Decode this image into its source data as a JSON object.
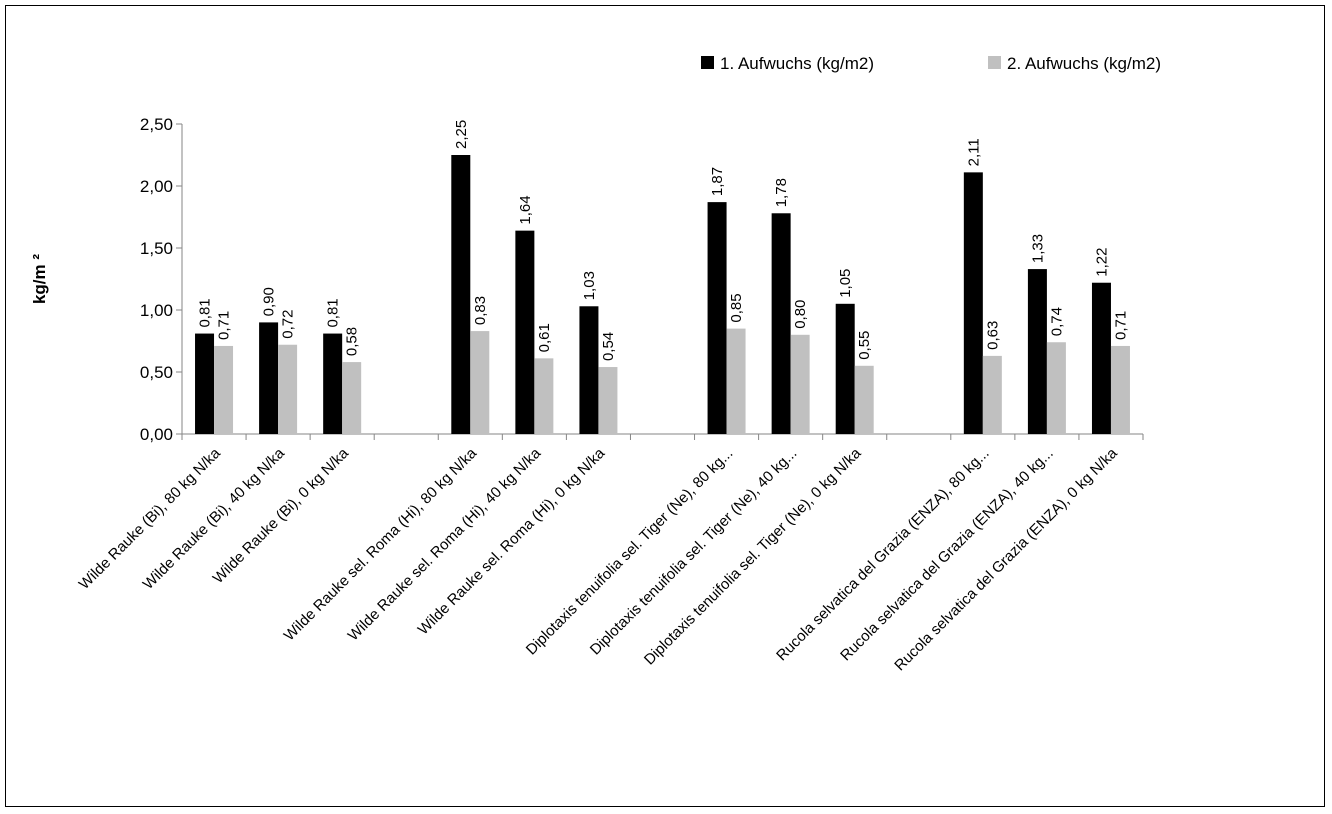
{
  "chart_data": {
    "type": "bar",
    "title": "",
    "xlabel": "",
    "ylabel": "kg/m ²",
    "ylim": [
      0,
      2.5
    ],
    "yticks": [
      "0,00",
      "0,50",
      "1,00",
      "1,50",
      "2,00",
      "2,50"
    ],
    "legend_position": "top-right",
    "grid": false,
    "categories": [
      "Wilde Rauke (Bi), 80 kg N/ka",
      "Wilde Rauke (Bi), 40 kg N/ka",
      "Wilde Rauke (Bi), 0 kg N/ka",
      "",
      "Wilde Rauke sel. Roma (Hi), 80 kg N/ka",
      "Wilde Rauke sel. Roma (Hi), 40 kg N/ka",
      "Wilde Rauke sel. Roma (Hi), 0 kg N/ka",
      "",
      "Diplotaxis tenuifolia sel. Tiger (Ne), 80 kg...",
      "Diplotaxis tenuifolia sel. Tiger (Ne), 40 kg...",
      "Diplotaxis tenuifolia sel. Tiger (Ne), 0 kg N/ka",
      "",
      "Rucola selvatica  del Grazia (ENZA), 80 kg...",
      "Rucola selvatica  del Grazia (ENZA), 40 kg...",
      "Rucola selvatica  del Grazia (ENZA), 0 kg N/ka"
    ],
    "series": [
      {
        "name": "1. Aufwuchs (kg/m2)",
        "color": "#000000",
        "values": [
          0.81,
          0.9,
          0.81,
          null,
          2.25,
          1.64,
          1.03,
          null,
          1.87,
          1.78,
          1.05,
          null,
          2.11,
          1.33,
          1.22
        ],
        "labels": [
          "0,81",
          "0,90",
          "0,81",
          "",
          "2,25",
          "1,64",
          "1,03",
          "",
          "1,87",
          "1,78",
          "1,05",
          "",
          "2,11",
          "1,33",
          "1,22"
        ]
      },
      {
        "name": "2. Aufwuchs (kg/m2)",
        "color": "#c0c0c0",
        "values": [
          0.71,
          0.72,
          0.58,
          null,
          0.83,
          0.61,
          0.54,
          null,
          0.85,
          0.8,
          0.55,
          null,
          0.63,
          0.74,
          0.71
        ],
        "labels": [
          "0,71",
          "0,72",
          "0,58",
          "",
          "0,83",
          "0,61",
          "0,54",
          "",
          "0,85",
          "0,80",
          "0,55",
          "",
          "0,63",
          "0,74",
          "0,71"
        ]
      }
    ]
  }
}
